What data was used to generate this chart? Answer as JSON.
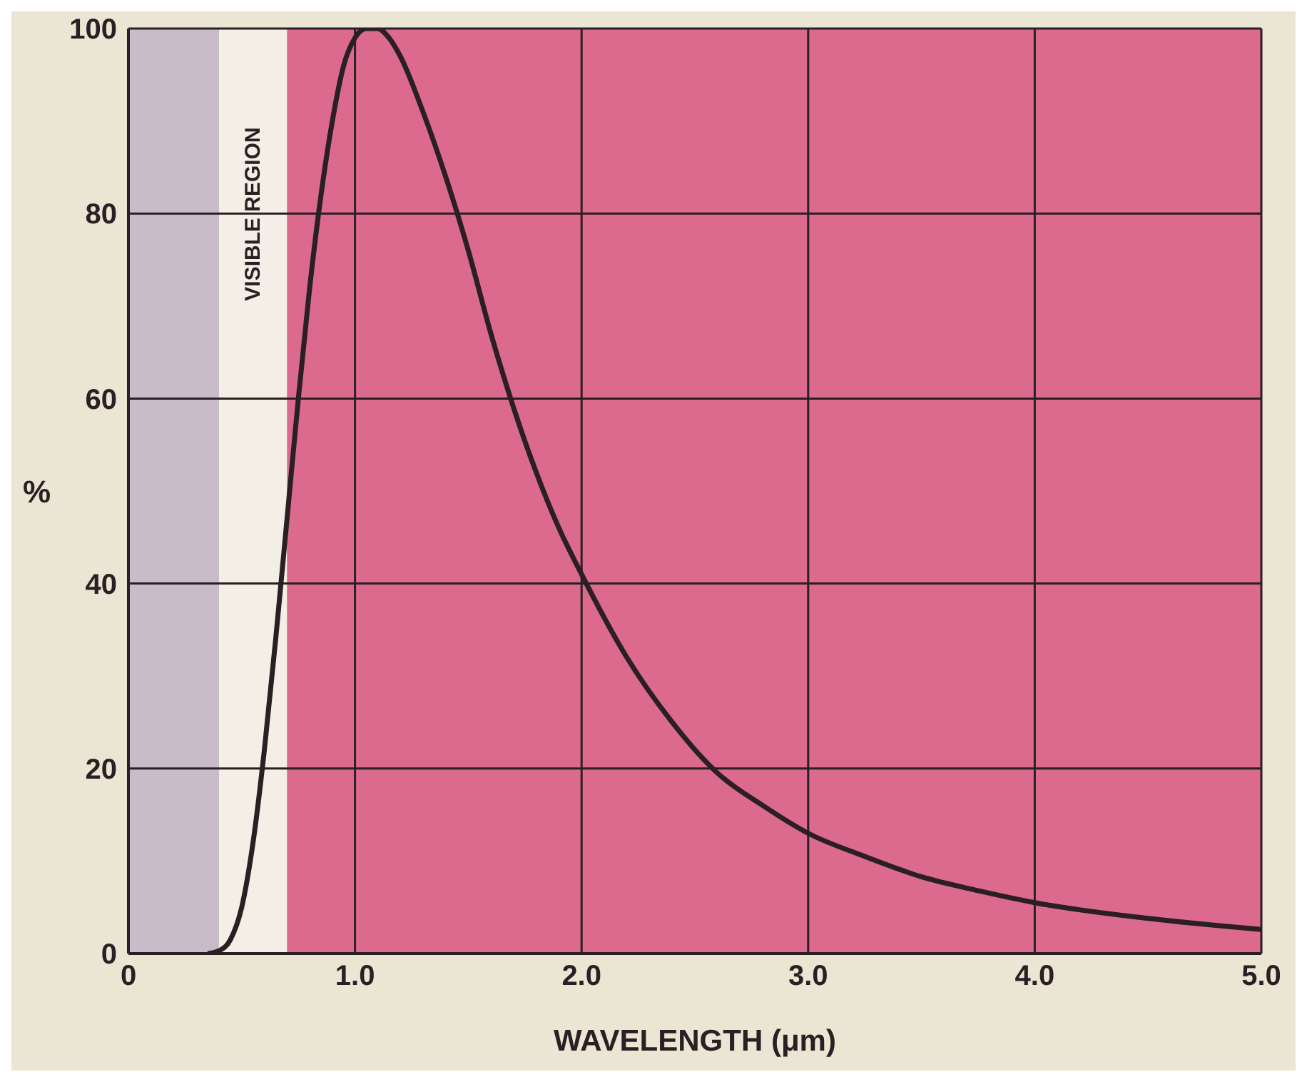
{
  "chart_data": {
    "type": "line",
    "xlabel": "WAVELENGTH (μm)",
    "ylabel": "%",
    "x": [
      0.35,
      0.4,
      0.45,
      0.5,
      0.55,
      0.6,
      0.65,
      0.7,
      0.75,
      0.8,
      0.85,
      0.9,
      0.95,
      1.0,
      1.05,
      1.1,
      1.15,
      1.2,
      1.3,
      1.4,
      1.5,
      1.6,
      1.7,
      1.8,
      1.9,
      2.0,
      2.2,
      2.4,
      2.6,
      2.8,
      3.0,
      3.25,
      3.5,
      3.75,
      4.0,
      4.5,
      5.0
    ],
    "series": [
      {
        "color": "#2a1f22",
        "values": [
          0,
          0.3,
          1.5,
          5,
          12,
          22,
          34,
          47,
          60,
          72,
          82,
          90,
          96,
          99,
          100,
          100,
          99,
          97,
          91,
          84,
          76,
          67,
          59,
          52,
          46,
          41,
          32,
          25,
          19.5,
          16,
          13,
          10.5,
          8.3,
          6.8,
          5.5,
          3.8,
          2.6
        ]
      }
    ],
    "xlim": [
      0,
      5
    ],
    "xticks": [
      0,
      {
        "value": 1,
        "label": "1.0"
      },
      {
        "value": 2,
        "label": "2.0"
      },
      {
        "value": 3,
        "label": "3.0"
      },
      {
        "value": 4,
        "label": "4.0"
      },
      {
        "value": 5,
        "label": "5.0"
      }
    ],
    "ylim": [
      0,
      100
    ],
    "yticks": [
      0,
      20,
      40,
      60,
      80,
      100
    ],
    "bands": [
      {
        "axis": "x",
        "from": 0,
        "to": 0.4,
        "label": null,
        "color": "#c9bcc8"
      },
      {
        "axis": "x",
        "from": 0.4,
        "to": 0.7,
        "label": "VISIBLE REGION",
        "color": "#f4efe6"
      },
      {
        "axis": "x",
        "from": 0.7,
        "to": 5,
        "label": null,
        "color": "#db6a8e"
      }
    ],
    "grid": true,
    "marker": "none",
    "line_style": "solid",
    "legend": false
  }
}
